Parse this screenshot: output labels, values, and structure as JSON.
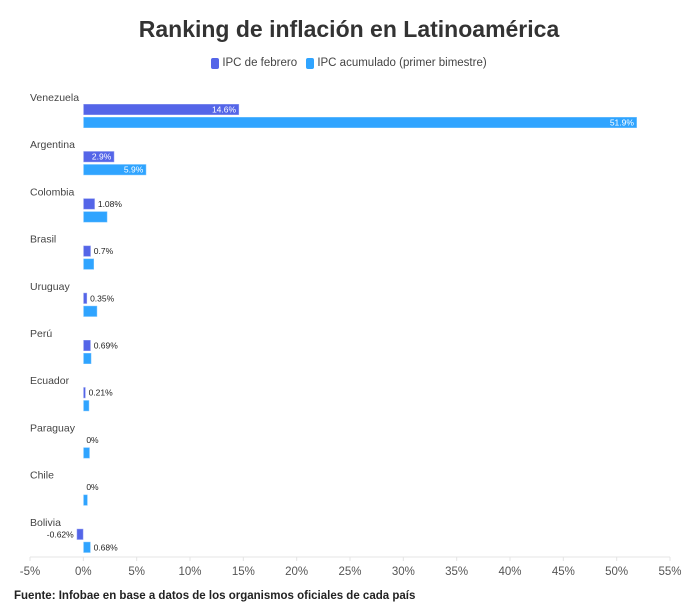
{
  "chart_data": {
    "type": "bar",
    "orientation": "horizontal",
    "title": "Ranking de inflación en Latinoamérica",
    "categories": [
      "Venezuela",
      "Argentina",
      "Colombia",
      "Brasil",
      "Uruguay",
      "Perú",
      "Ecuador",
      "Paraguay",
      "Chile",
      "Bolivia"
    ],
    "series": [
      {
        "name": "IPC de febrero",
        "color": "#5465e8",
        "values": [
          14.6,
          2.9,
          1.08,
          0.7,
          0.35,
          0.69,
          0.21,
          0,
          0,
          -0.62
        ],
        "labels": [
          "14.6%",
          "2.9%",
          "1.08%",
          "0.7%",
          "0.35%",
          "0.69%",
          "0.21%",
          "0%",
          "0%",
          "-0.62%"
        ]
      },
      {
        "name": "IPC acumulado (primer bimestre)",
        "color": "#2fa4ff",
        "values": [
          51.9,
          5.9,
          2.25,
          1.0,
          1.3,
          0.75,
          0.55,
          0.6,
          0.4,
          0.68
        ],
        "labels": [
          "51.9%",
          "5.9%",
          "",
          "",
          "",
          "",
          "",
          "",
          "",
          "0.68%"
        ]
      }
    ],
    "xlim": [
      -5,
      55
    ],
    "xticks": [
      "-5%",
      "0%",
      "5%",
      "10%",
      "15%",
      "20%",
      "25%",
      "30%",
      "35%",
      "40%",
      "45%",
      "50%",
      "55%"
    ],
    "legend_position": "top-center"
  },
  "source": "Fuente: Infobae en base a datos de los organismos oficiales de cada país"
}
